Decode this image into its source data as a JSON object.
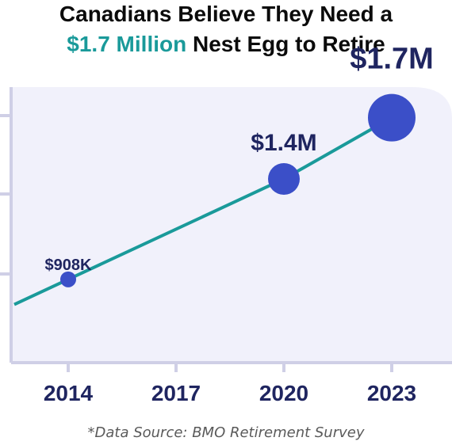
{
  "header": {
    "title_line1": "Canadians Believe They Need a",
    "title_line2_highlight": "$1.7 Million",
    "title_line2_rest": " Nest Egg to Retire"
  },
  "footer": {
    "source": "*Data Source: BMO Retirement Survey"
  },
  "colors": {
    "accent": "#1a9a9a",
    "line": "#1a9a9a",
    "point": "#3b4fc8",
    "plot_background": "#f1f1fb",
    "axis": "#cfcfe6",
    "label": "#1f2560"
  },
  "chart_data": {
    "type": "line",
    "title": "Canadians Believe They Need a $1.7 Million Nest Egg to Retire",
    "categories": [
      "2014",
      "2017",
      "2020",
      "2023"
    ],
    "series": [
      {
        "values": [
          {
            "x": "2014",
            "y": 908000,
            "label": "$908K"
          },
          {
            "x": "2020",
            "y": 1400000,
            "label": "$1.4M"
          },
          {
            "x": "2023",
            "y": 1700000,
            "label": "$1.7M"
          }
        ]
      }
    ],
    "ylim": [
      500000,
      1850000
    ],
    "grid": false,
    "legend": "none"
  }
}
